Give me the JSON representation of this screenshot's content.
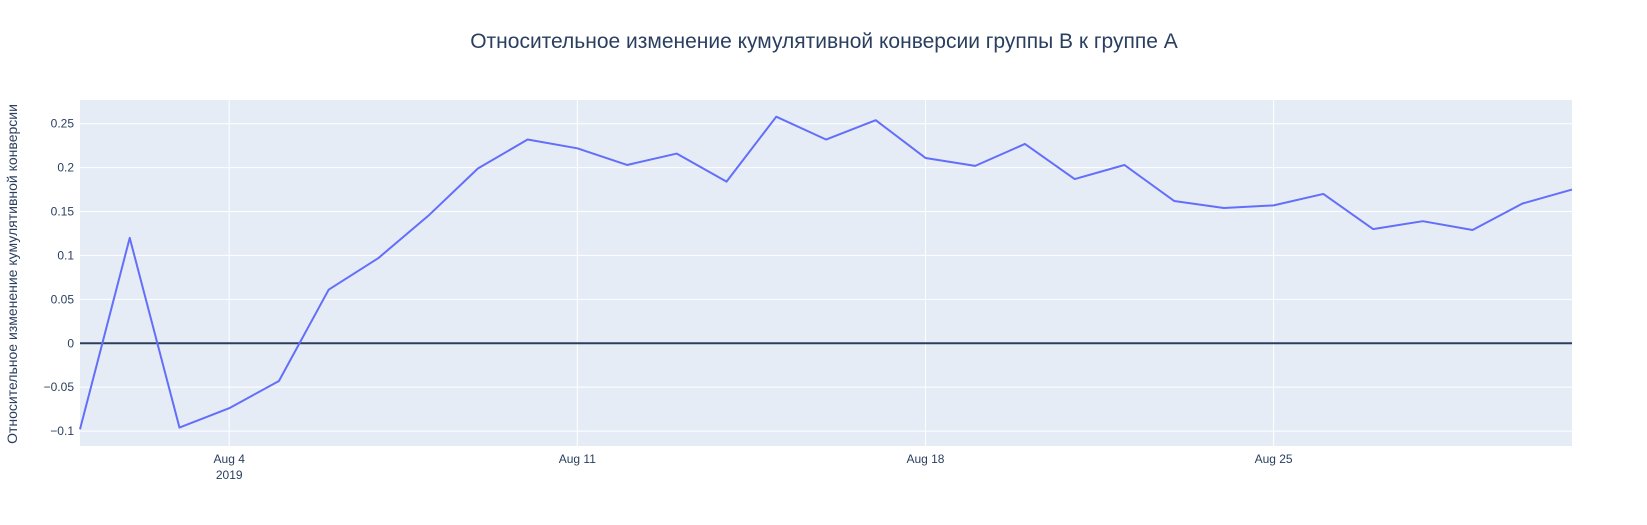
{
  "chart_data": {
    "type": "line",
    "title": "Относительное изменение кумулятивной конверсии группы В к группе А",
    "xlabel": "",
    "ylabel": "Относительное изменение кумулятивной конверсии",
    "x": [
      "2019-08-01",
      "2019-08-02",
      "2019-08-03",
      "2019-08-04",
      "2019-08-05",
      "2019-08-06",
      "2019-08-07",
      "2019-08-08",
      "2019-08-09",
      "2019-08-10",
      "2019-08-11",
      "2019-08-12",
      "2019-08-13",
      "2019-08-14",
      "2019-08-15",
      "2019-08-16",
      "2019-08-17",
      "2019-08-18",
      "2019-08-19",
      "2019-08-20",
      "2019-08-21",
      "2019-08-22",
      "2019-08-23",
      "2019-08-24",
      "2019-08-25",
      "2019-08-26",
      "2019-08-27",
      "2019-08-28",
      "2019-08-29",
      "2019-08-30",
      "2019-08-31"
    ],
    "series": [
      {
        "values": [
          -0.098,
          0.12,
          -0.096,
          -0.074,
          -0.043,
          0.061,
          0.097,
          0.145,
          0.199,
          0.232,
          0.222,
          0.203,
          0.216,
          0.184,
          0.258,
          0.232,
          0.254,
          0.211,
          0.202,
          0.227,
          0.187,
          0.203,
          0.162,
          0.154,
          0.157,
          0.17,
          0.13,
          0.139,
          0.129,
          0.159,
          0.175
        ],
        "color": "#636efa"
      }
    ],
    "reference_line": {
      "y": 0,
      "color": "#2a3f5f"
    },
    "xlim": [
      "2019-08-01",
      "2019-08-31"
    ],
    "ylim": [
      -0.117,
      0.277
    ],
    "x_ticks": [
      {
        "date": "2019-08-04",
        "label": "Aug 4",
        "sublabel": "2019"
      },
      {
        "date": "2019-08-11",
        "label": "Aug 11",
        "sublabel": ""
      },
      {
        "date": "2019-08-18",
        "label": "Aug 18",
        "sublabel": ""
      },
      {
        "date": "2019-08-25",
        "label": "Aug 25",
        "sublabel": ""
      }
    ],
    "y_ticks": [
      {
        "value": -0.1,
        "label": "−0.1"
      },
      {
        "value": -0.05,
        "label": "−0.05"
      },
      {
        "value": 0,
        "label": "0"
      },
      {
        "value": 0.05,
        "label": "0.05"
      },
      {
        "value": 0.1,
        "label": "0.1"
      },
      {
        "value": 0.15,
        "label": "0.15"
      },
      {
        "value": 0.2,
        "label": "0.2"
      },
      {
        "value": 0.25,
        "label": "0.25"
      }
    ],
    "grid": true,
    "legend": false,
    "colors": {
      "plot_bg": "#e5ecf6",
      "grid": "#ffffff",
      "text": "#2a3f5f"
    }
  }
}
